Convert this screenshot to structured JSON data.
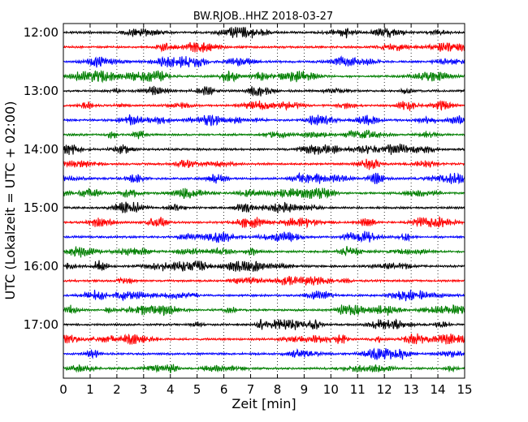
{
  "chart_data": {
    "type": "line",
    "title": "BW.RJOB..HHZ 2018-03-27",
    "xlabel": "Zeit  [min]",
    "ylabel": "UTC (Lokalzeit = UTC + 02:00)",
    "xlim": [
      0,
      15
    ],
    "x_ticks": [
      "0",
      "1",
      "2",
      "3",
      "4",
      "5",
      "6",
      "7",
      "8",
      "9",
      "10",
      "11",
      "12",
      "13",
      "14",
      "15"
    ],
    "y_ticks": [
      "12:00",
      "13:00",
      "14:00",
      "15:00",
      "16:00",
      "17:00"
    ],
    "traces_per_hour": 4,
    "trace_count": 24,
    "trace_colors": [
      "#000000",
      "#ff0000",
      "#0000ff",
      "#007f00"
    ],
    "grid": {
      "vertical_dotted": true
    },
    "series": [
      {
        "start": "12:00"
      },
      {
        "start": "12:15"
      },
      {
        "start": "12:30"
      },
      {
        "start": "12:45"
      },
      {
        "start": "13:00"
      },
      {
        "start": "13:15"
      },
      {
        "start": "13:30"
      },
      {
        "start": "13:45"
      },
      {
        "start": "14:00"
      },
      {
        "start": "14:15"
      },
      {
        "start": "14:30"
      },
      {
        "start": "14:45"
      },
      {
        "start": "15:00"
      },
      {
        "start": "15:15"
      },
      {
        "start": "15:30"
      },
      {
        "start": "15:45"
      },
      {
        "start": "16:00"
      },
      {
        "start": "16:15"
      },
      {
        "start": "16:30"
      },
      {
        "start": "16:45"
      },
      {
        "start": "17:00"
      },
      {
        "start": "17:15"
      },
      {
        "start": "17:30"
      },
      {
        "start": "17:45"
      }
    ]
  }
}
